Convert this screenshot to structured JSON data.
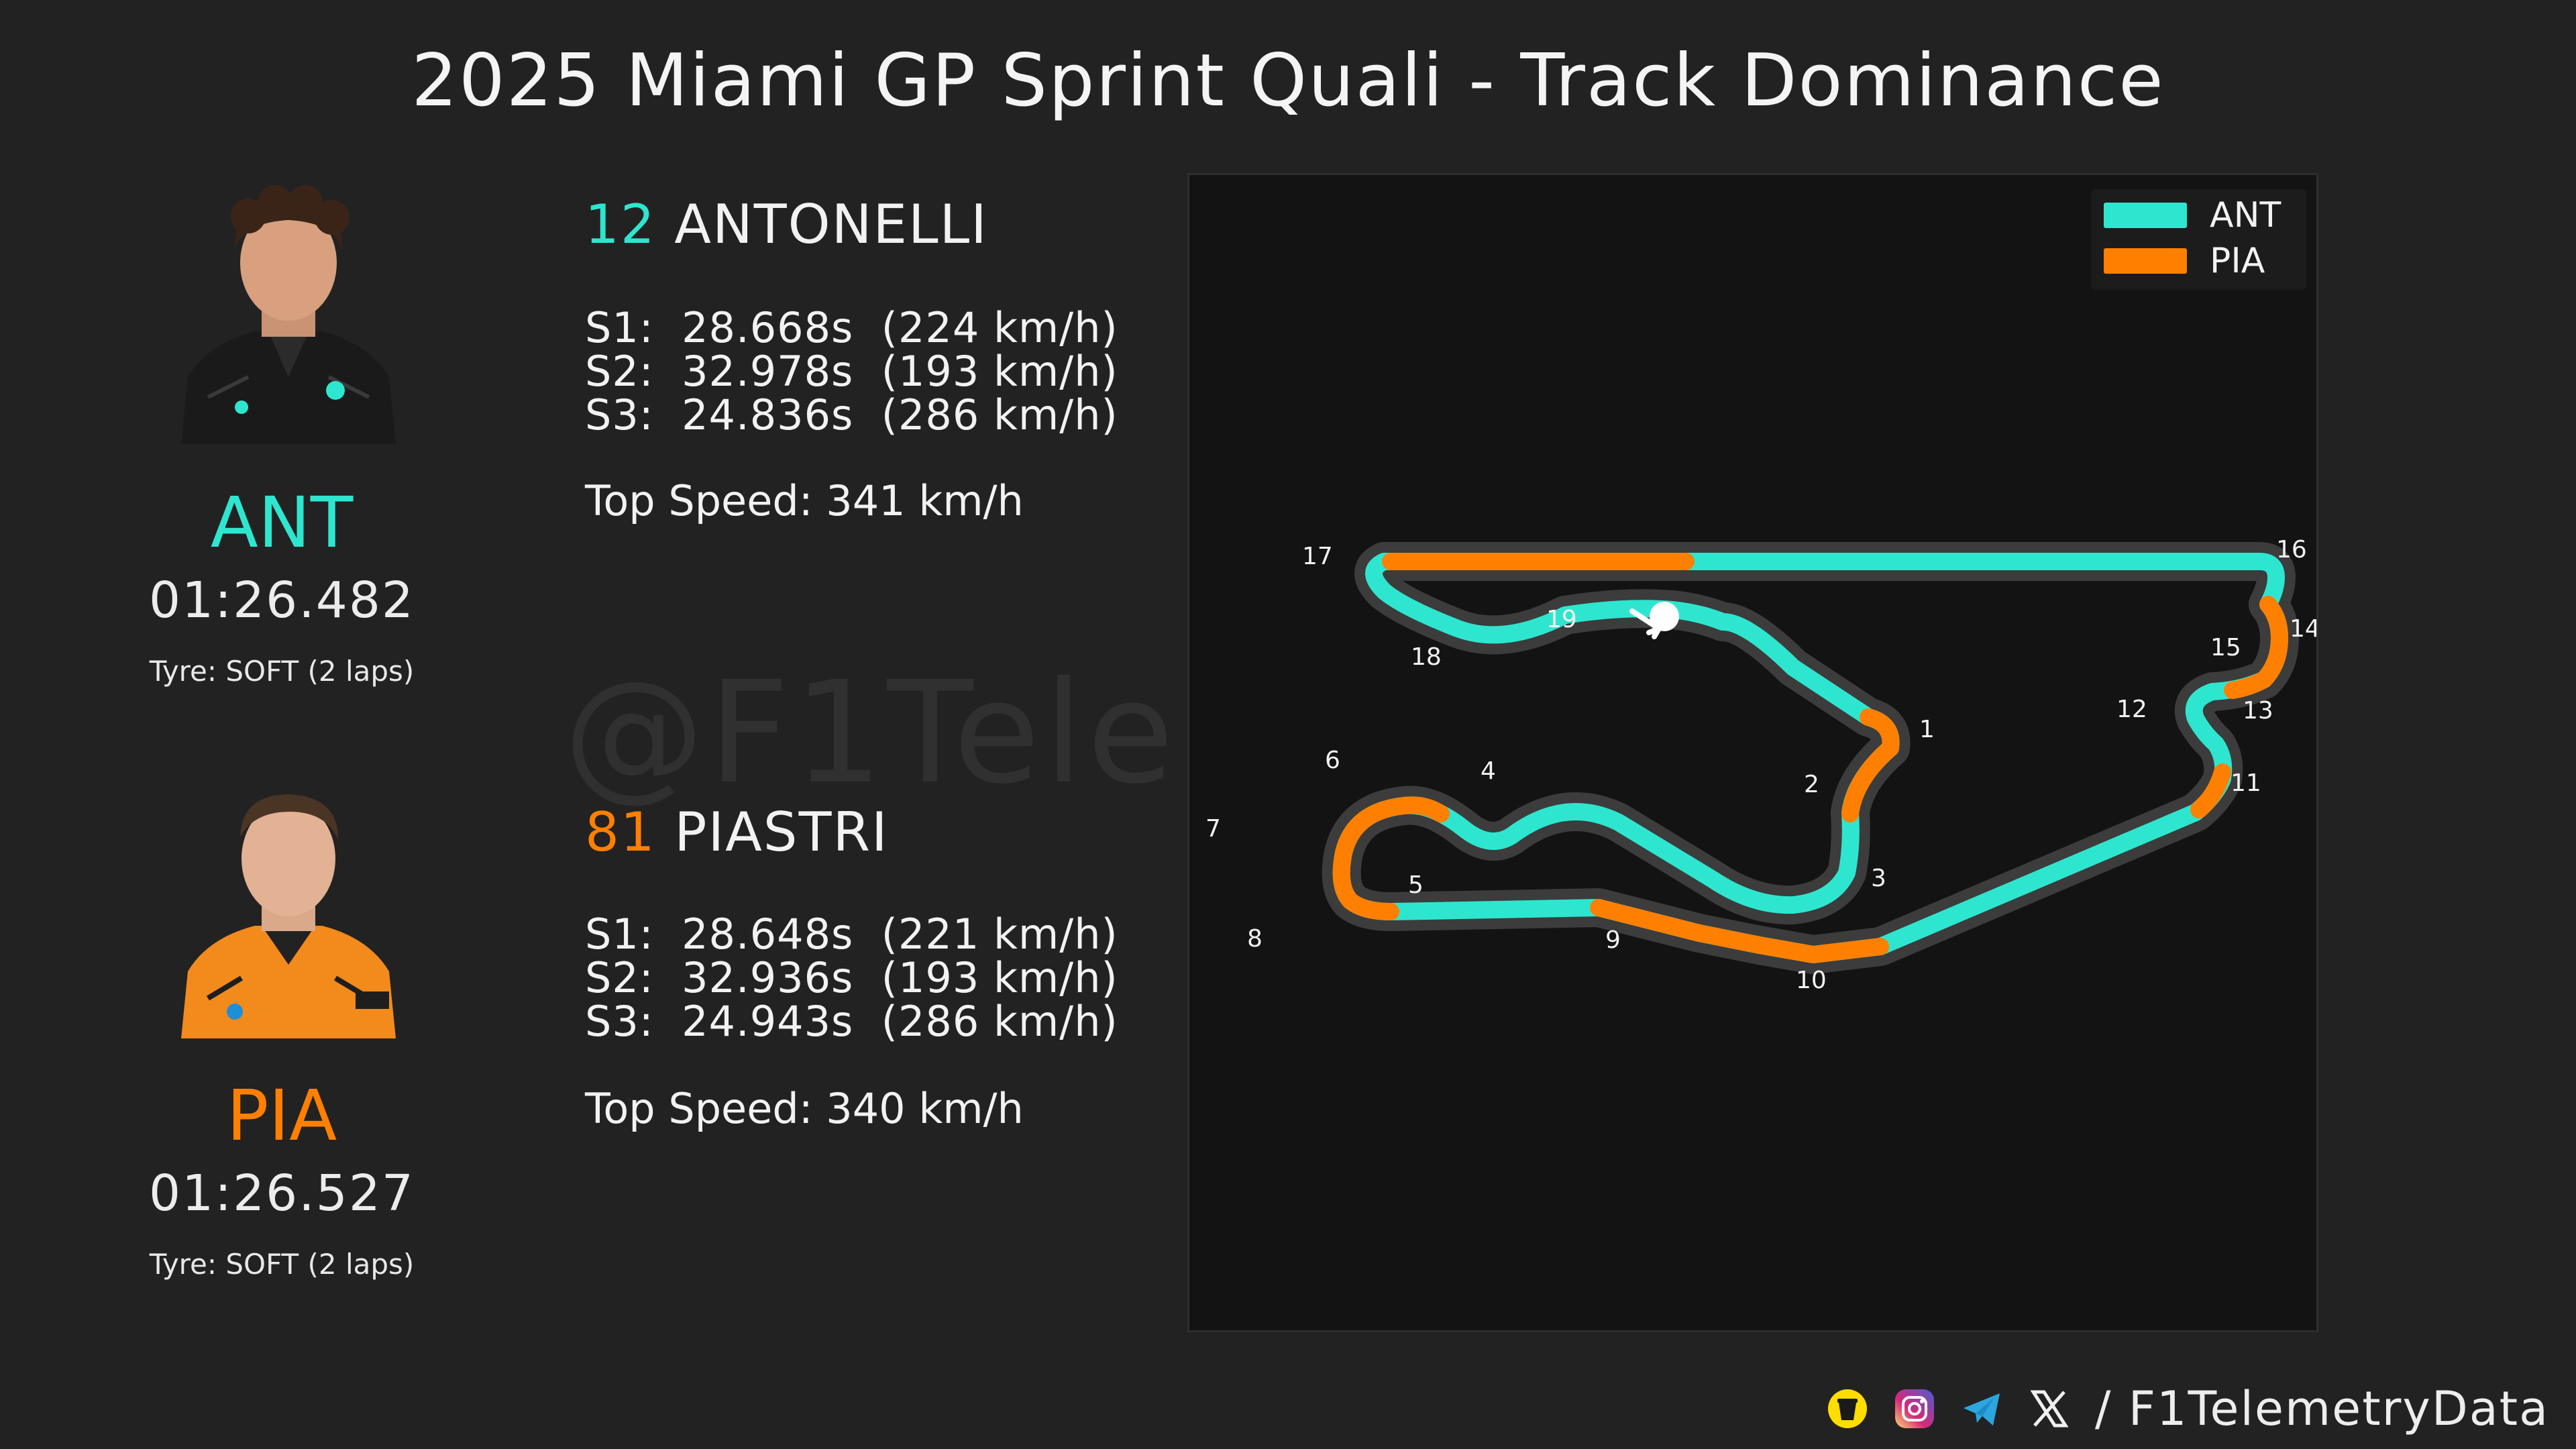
{
  "title": "2025 Miami GP Sprint Quali - Track Dominance",
  "watermark": "@F1TelemetryData",
  "drivers": [
    {
      "code": "ANT",
      "number": "12",
      "surname": "ANTONELLI",
      "lap_time": "01:26.482",
      "tyre": "Tyre: SOFT (2 laps)",
      "sectors": [
        "S1:  28.668s  (224 km/h)",
        "S2:  32.978s  (193 km/h)",
        "S3:  24.836s  (286 km/h)"
      ],
      "top_speed": "Top Speed: 341 km/h",
      "color": "#2ee6cf"
    },
    {
      "code": "PIA",
      "number": "81",
      "surname": "PIASTRI",
      "lap_time": "01:26.527",
      "tyre": "Tyre: SOFT (2 laps)",
      "sectors": [
        "S1:  28.648s  (221 km/h)",
        "S2:  32.936s  (193 km/h)",
        "S3:  24.943s  (286 km/h)"
      ],
      "top_speed": "Top Speed: 340 km/h",
      "color": "#ff8000"
    }
  ],
  "legend": [
    {
      "label": "ANT",
      "color": "#2ee6cf"
    },
    {
      "label": "PIA",
      "color": "#ff8000"
    }
  ],
  "corners": [
    "1",
    "2",
    "3",
    "4",
    "5",
    "6",
    "7",
    "8",
    "9",
    "10",
    "11",
    "12",
    "13",
    "14",
    "15",
    "16",
    "17",
    "18",
    "19"
  ],
  "footer": {
    "text": "/ F1TelemetryData",
    "icons": [
      "buymeacoffee-icon",
      "instagram-icon",
      "telegram-icon",
      "x-icon"
    ]
  }
}
